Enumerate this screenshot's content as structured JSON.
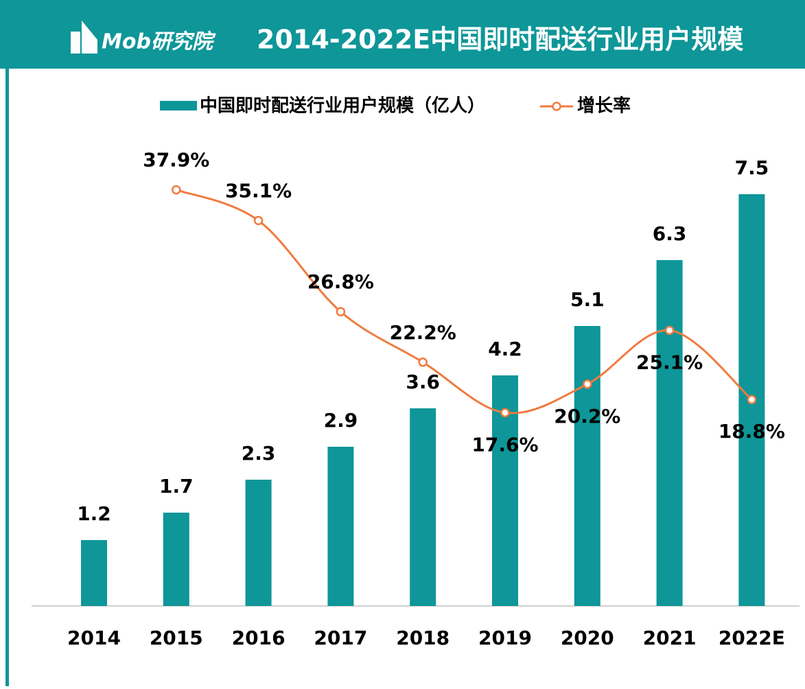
{
  "brand": "Mob研究院",
  "chart_data": {
    "type": "combo",
    "title": "2014-2022E中国即时配送行业用户规模",
    "categories": [
      "2014",
      "2015",
      "2016",
      "2017",
      "2018",
      "2019",
      "2020",
      "2021",
      "2022E"
    ],
    "ylim": [
      0,
      8
    ],
    "y2lim": [
      0,
      40
    ],
    "series": [
      {
        "name": "中国即时配送行业用户规模（亿人）",
        "type": "bar",
        "color": "#0e9698",
        "values": [
          1.2,
          1.7,
          2.3,
          2.9,
          3.6,
          4.2,
          5.1,
          6.3,
          7.5
        ]
      },
      {
        "name": "增长率",
        "type": "line",
        "axis": "y2",
        "color": "#f07b3f",
        "values": [
          null,
          37.9,
          35.1,
          26.8,
          22.2,
          17.6,
          20.2,
          25.1,
          18.8
        ],
        "value_labels": [
          null,
          "37.9%",
          "35.1%",
          "26.8%",
          "22.2%",
          "17.6%",
          "20.2%",
          "25.1%",
          "18.8%"
        ]
      }
    ]
  }
}
